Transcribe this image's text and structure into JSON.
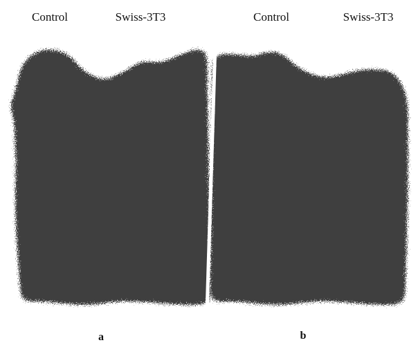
{
  "panels": [
    {
      "label": "a",
      "lanes": [
        "Control",
        "Swiss-3T3"
      ]
    },
    {
      "label": "b",
      "lanes": [
        "Control",
        "Swiss-3T3"
      ]
    }
  ]
}
